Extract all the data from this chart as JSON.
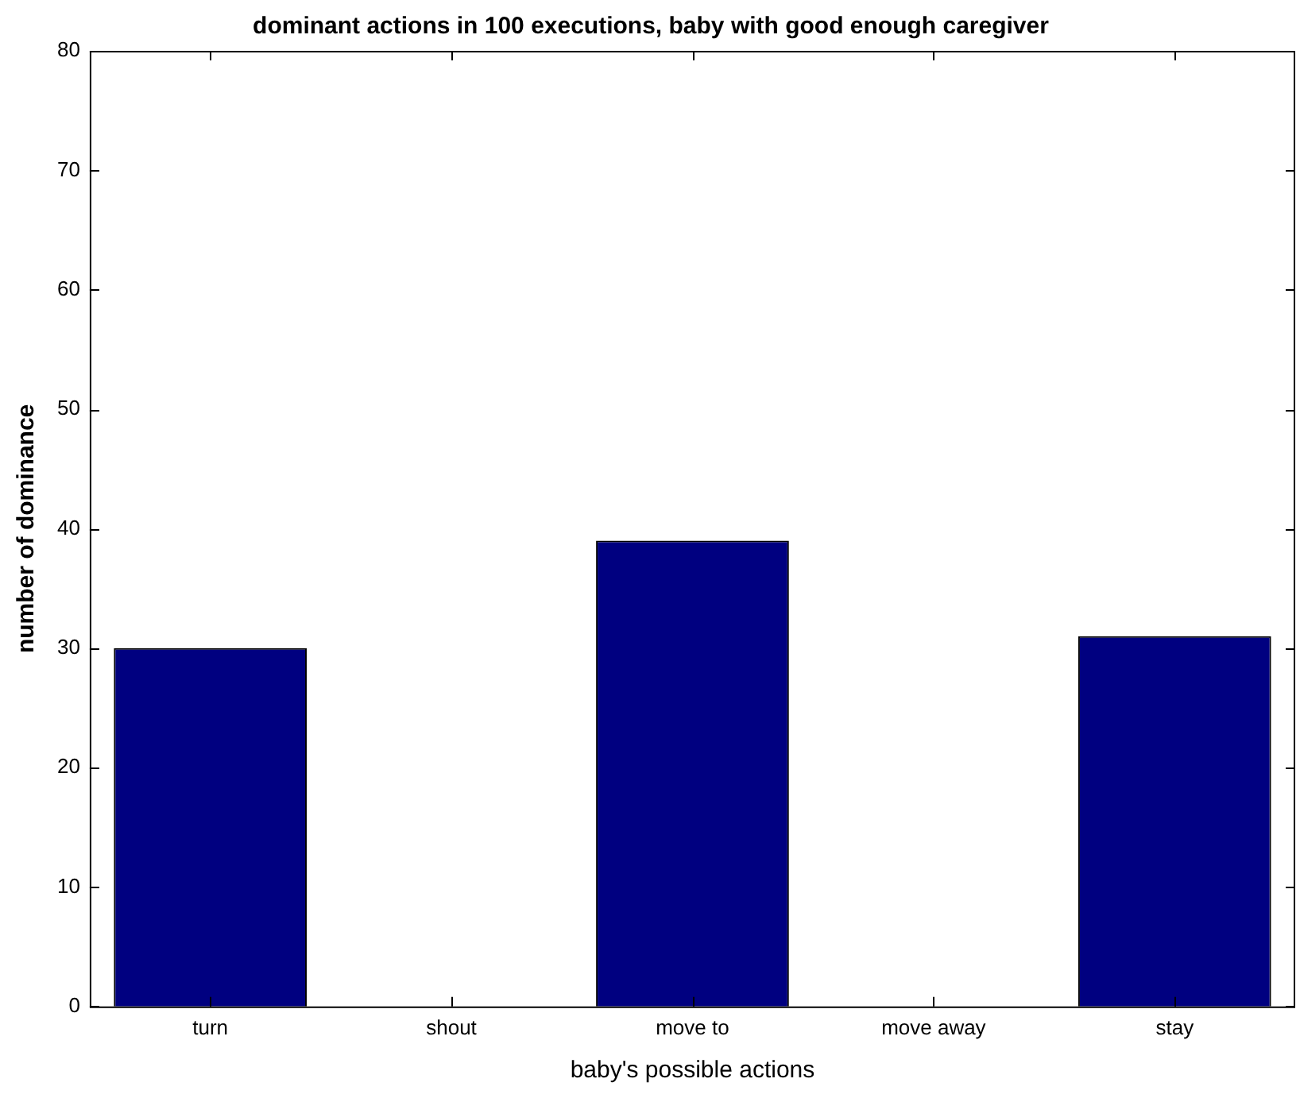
{
  "chart_data": {
    "type": "bar",
    "title": "dominant actions in 100 executions, baby with good enough caregiver",
    "xlabel": "baby's possible actions",
    "ylabel": "number of dominance",
    "categories": [
      "turn",
      "shout",
      "move to",
      "move away",
      "stay"
    ],
    "values": [
      30,
      0,
      39,
      0,
      31
    ],
    "color": "#000080",
    "ylim": [
      0,
      80
    ],
    "yticks": [
      0,
      10,
      20,
      30,
      40,
      50,
      60,
      70,
      80
    ],
    "grid": false,
    "legend": false
  }
}
